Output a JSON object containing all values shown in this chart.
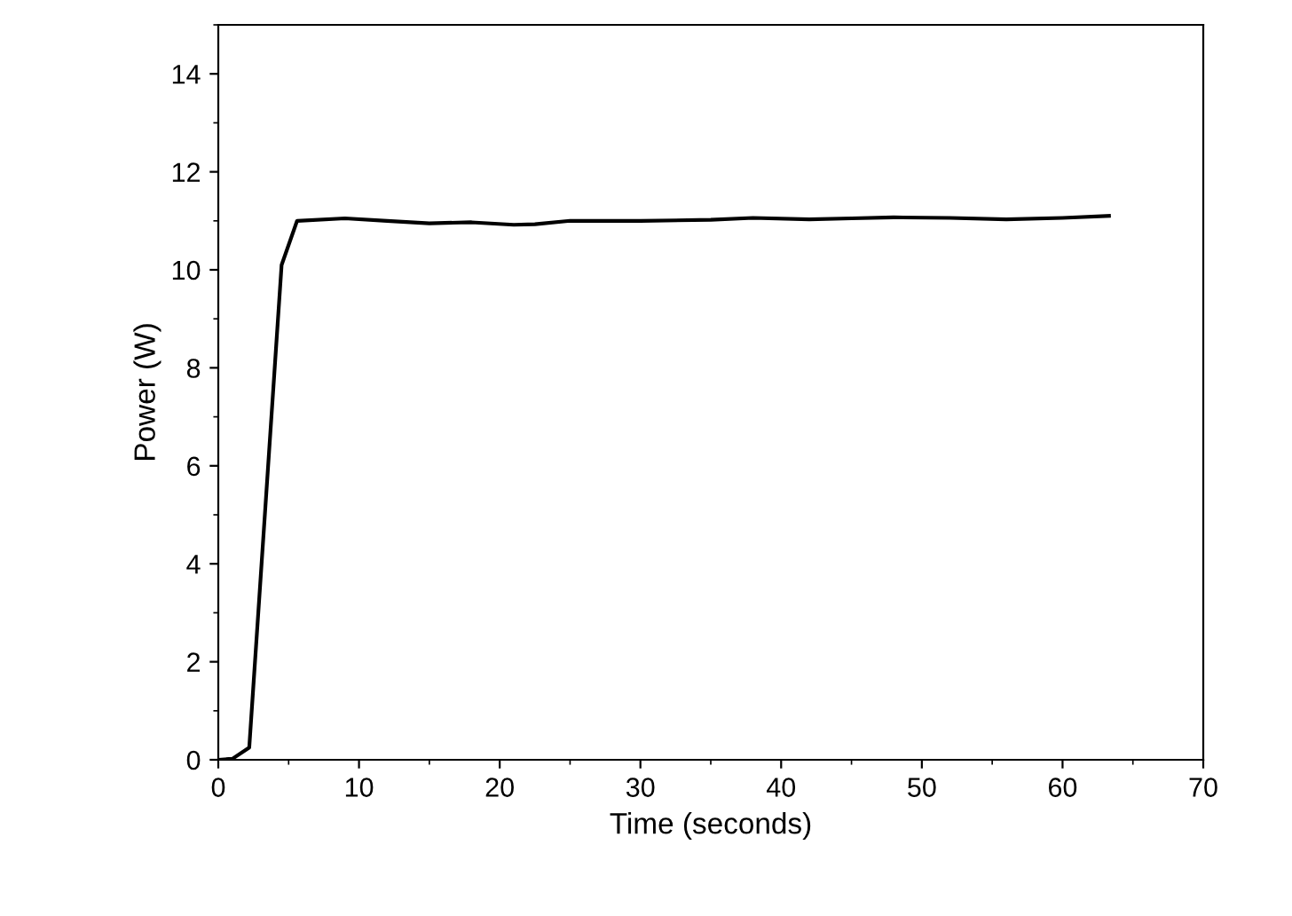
{
  "chart_data": {
    "type": "line",
    "xlabel": "Time (seconds)",
    "ylabel": "Power (W)",
    "x": [
      0,
      1,
      2.2,
      4.5,
      5.6,
      9,
      12,
      15,
      18,
      21,
      22.5,
      25,
      30,
      35,
      38,
      42,
      45,
      48,
      52,
      56,
      60,
      63.3
    ],
    "series": [
      {
        "color": "#000000",
        "values": [
          0,
          0.02,
          0.25,
          10.1,
          11.0,
          11.05,
          11.0,
          10.95,
          10.97,
          10.92,
          10.93,
          11.0,
          11.0,
          11.02,
          11.06,
          11.03,
          11.05,
          11.07,
          11.06,
          11.03,
          11.06,
          11.1
        ]
      }
    ],
    "xlim": [
      0,
      70
    ],
    "ylim": [
      0,
      15
    ],
    "xticks": [
      0,
      10,
      20,
      30,
      40,
      50,
      60,
      70
    ],
    "yticks": [
      0,
      2,
      4,
      6,
      8,
      10,
      12,
      14
    ],
    "grid": false,
    "legend": false,
    "marker": "none",
    "line_style": "solid"
  }
}
